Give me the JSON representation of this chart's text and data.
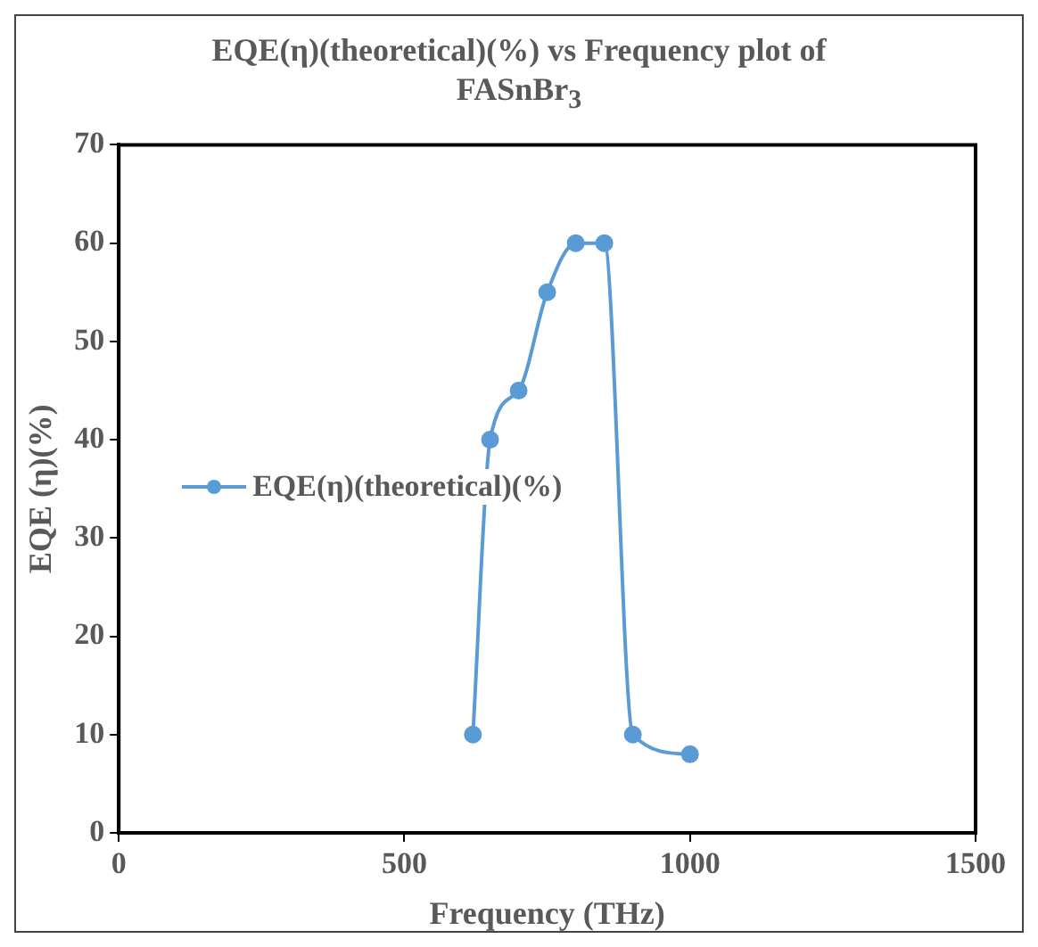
{
  "chart_data": {
    "type": "line",
    "title": "EQE(η)(theoretical)(%) vs Frequency plot of FASnBr$_{3}$",
    "xlabel": "Frequency (THz)",
    "ylabel": "EQE (η)(%)",
    "series": [
      {
        "name": "EQE(η)(theoretical)(%)",
        "color": "#5b9bd5",
        "x": [
          620,
          650,
          700,
          750,
          800,
          850,
          900,
          1000
        ],
        "values": [
          10,
          40,
          45,
          55,
          60,
          60,
          10,
          8
        ]
      }
    ],
    "xlim": [
      0,
      1500
    ],
    "xticks": [
      0,
      500,
      1000,
      1500
    ],
    "ylim": [
      0,
      70
    ],
    "yticks": [
      0,
      10,
      20,
      30,
      40,
      50,
      60,
      70
    ],
    "legend": "left",
    "marker": "circle",
    "line_style": "solid"
  }
}
